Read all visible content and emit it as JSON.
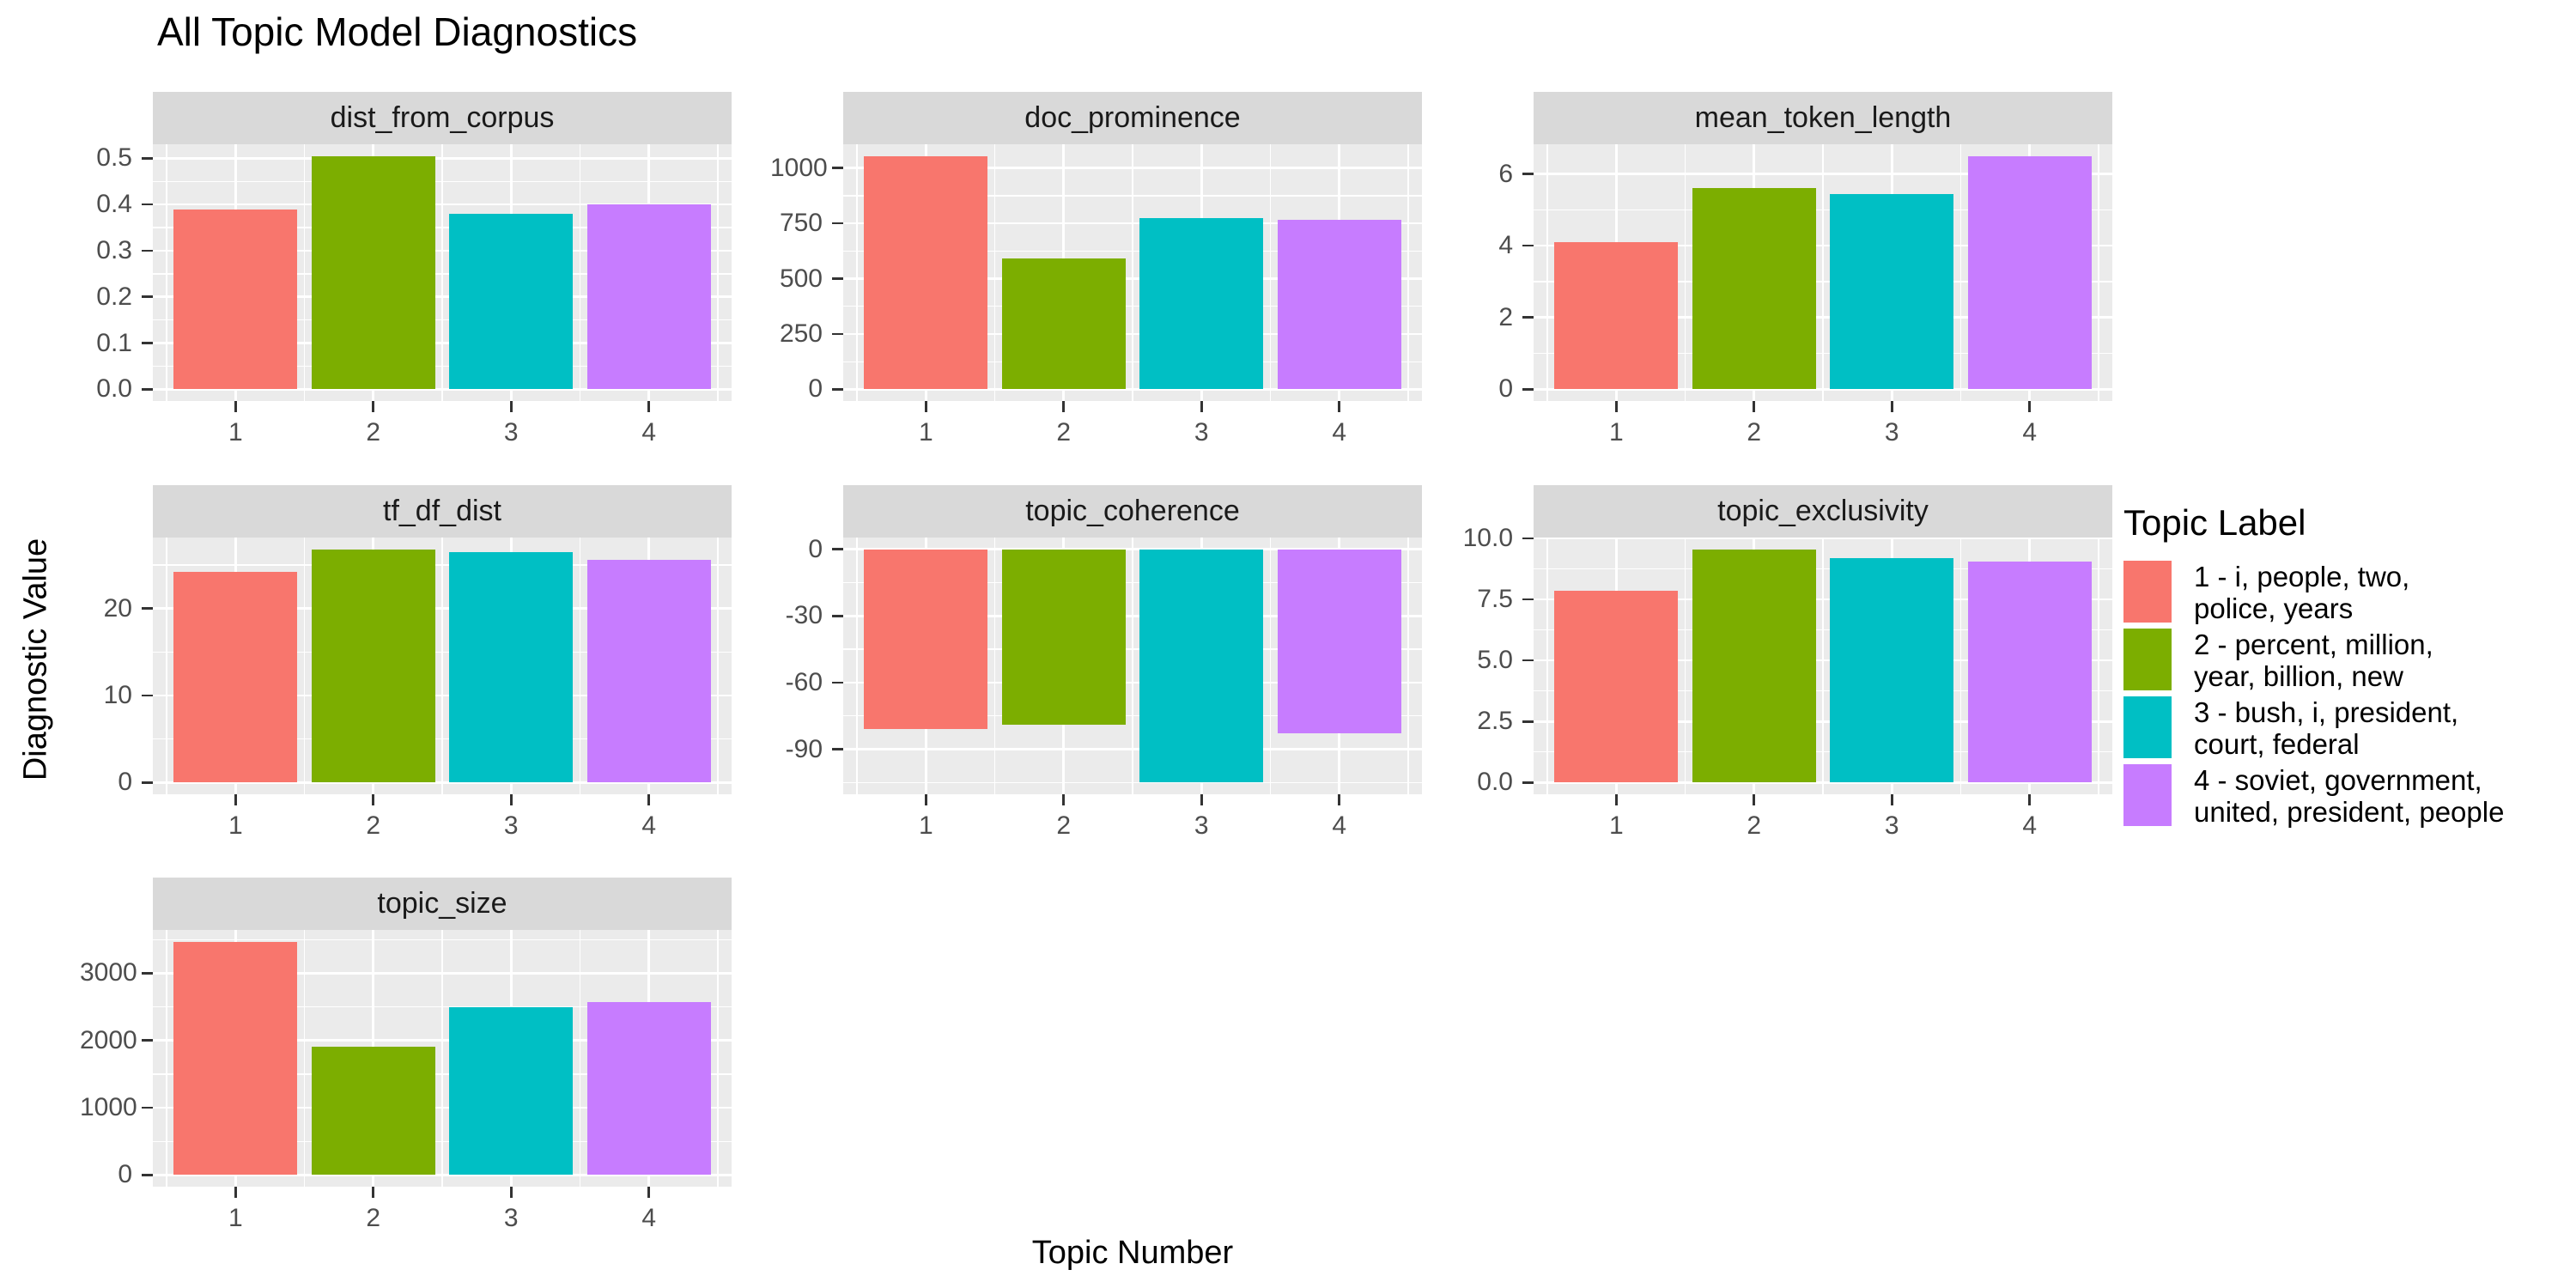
{
  "chart_data": {
    "type": "bar",
    "title": "All Topic Model Diagnostics",
    "xlabel": "Topic Number",
    "ylabel": "Diagnostic Value",
    "categories": [
      "1",
      "2",
      "3",
      "4"
    ],
    "palette": [
      "#F8766D",
      "#7CAE00",
      "#00BFC4",
      "#C77CFF"
    ],
    "facets_per_row": 3,
    "grid": "on",
    "theme": {
      "panel_bg": "#EBEBEB",
      "strip_bg": "#D9D9D9",
      "grid_color": "#FFFFFF",
      "tick_text_color": "#4d4d4d",
      "tick_mark_color": "#333333"
    },
    "legend": {
      "title": "Topic Label",
      "position": "right",
      "items": [
        {
          "color": "#F8766D",
          "label": "1 - i, people, two,\npolice, years"
        },
        {
          "color": "#7CAE00",
          "label": "2 - percent, million,\nyear, billion, new"
        },
        {
          "color": "#00BFC4",
          "label": "3 - bush, i, president,\ncourt, federal"
        },
        {
          "color": "#C77CFF",
          "label": "4 - soviet, government,\nunited, president, people"
        }
      ]
    },
    "facets": [
      {
        "facet": "dist_from_corpus",
        "values": [
          0.39,
          0.505,
          0.38,
          0.4
        ],
        "ylim": [
          -0.0253,
          0.5303
        ],
        "yticks": [
          0,
          0.1,
          0.2,
          0.3,
          0.4,
          0.5
        ],
        "ytick_labels": [
          "0.0",
          "0.1",
          "0.2",
          "0.3",
          "0.4",
          "0.5"
        ]
      },
      {
        "facet": "doc_prominence",
        "values": [
          1055,
          590,
          775,
          765
        ],
        "ylim": [
          -52.75,
          1107.75
        ],
        "yticks": [
          0,
          250,
          500,
          750,
          1000
        ],
        "ytick_labels": [
          "0",
          "250",
          "500",
          "750",
          "1000"
        ]
      },
      {
        "facet": "mean_token_length",
        "values": [
          4.1,
          5.6,
          5.45,
          6.5
        ],
        "ylim": [
          -0.325,
          6.825
        ],
        "yticks": [
          0,
          2,
          4,
          6
        ],
        "ytick_labels": [
          "0",
          "2",
          "4",
          "6"
        ]
      },
      {
        "facet": "tf_df_dist",
        "values": [
          24.2,
          26.8,
          26.5,
          25.6
        ],
        "ylim": [
          -1.34,
          28.14
        ],
        "yticks": [
          0,
          10,
          20
        ],
        "ytick_labels": [
          "0",
          "10",
          "20"
        ]
      },
      {
        "facet": "topic_coherence",
        "values": [
          -81,
          -79,
          -105,
          -83
        ],
        "ylim": [
          -110.25,
          5.25
        ],
        "yticks": [
          -90,
          -60,
          -30,
          0
        ],
        "ytick_labels": [
          "-90",
          "-60",
          "-30",
          "0"
        ]
      },
      {
        "facet": "topic_exclusivity",
        "values": [
          7.85,
          9.55,
          9.2,
          9.05
        ],
        "ylim": [
          -0.48,
          10.03
        ],
        "yticks": [
          0,
          2.5,
          5,
          7.5,
          10
        ],
        "ytick_labels": [
          "0.0",
          "2.5",
          "5.0",
          "7.5",
          "10.0"
        ]
      },
      {
        "facet": "topic_size",
        "values": [
          3470,
          1910,
          2500,
          2570
        ],
        "ylim": [
          -173.5,
          3643.5
        ],
        "yticks": [
          0,
          1000,
          2000,
          3000
        ],
        "ytick_labels": [
          "0",
          "1000",
          "2000",
          "3000"
        ]
      }
    ]
  }
}
